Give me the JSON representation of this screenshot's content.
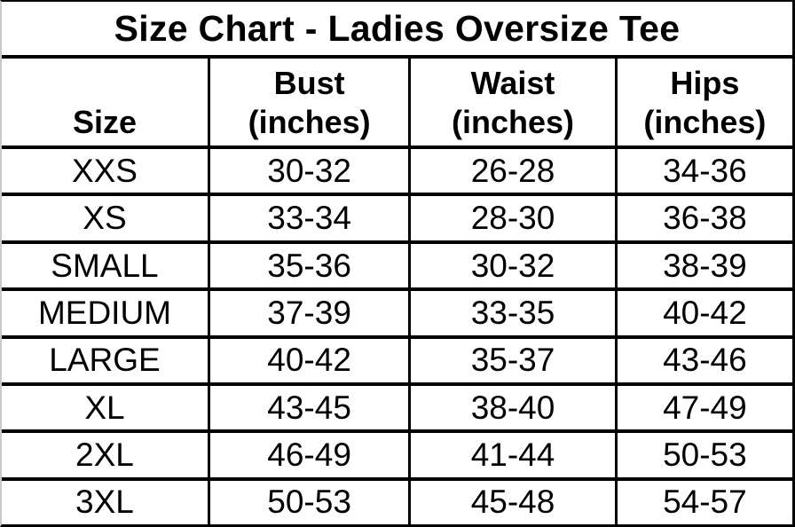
{
  "chart_data": {
    "type": "table",
    "title": "Size Chart - Ladies Oversize Tee",
    "columns": [
      {
        "header": "Size",
        "sub": ""
      },
      {
        "header": "Bust",
        "sub": "(inches)"
      },
      {
        "header": "Waist",
        "sub": "(inches)"
      },
      {
        "header": "Hips",
        "sub": "(inches)"
      }
    ],
    "rows": [
      [
        "XXS",
        "30-32",
        "26-28",
        "34-36"
      ],
      [
        "XS",
        "33-34",
        "28-30",
        "36-38"
      ],
      [
        "SMALL",
        "35-36",
        "30-32",
        "38-39"
      ],
      [
        "MEDIUM",
        "37-39",
        "33-35",
        "40-42"
      ],
      [
        "LARGE",
        "40-42",
        "35-37",
        "43-46"
      ],
      [
        "XL",
        "43-45",
        "38-40",
        "47-49"
      ],
      [
        "2XL",
        "46-49",
        "41-44",
        "50-53"
      ],
      [
        "3XL",
        "50-53",
        "45-48",
        "54-57"
      ]
    ],
    "layout": {
      "column_width_percents": [
        26.2,
        25.4,
        26.1,
        22.3
      ],
      "grid": "all-borders",
      "header_style": "bold",
      "title_position": "top-merged-row"
    }
  },
  "colors": {
    "text": "#000000",
    "border": "#000000",
    "background": "#ffffff",
    "left_edge": "#c9c9c9"
  }
}
